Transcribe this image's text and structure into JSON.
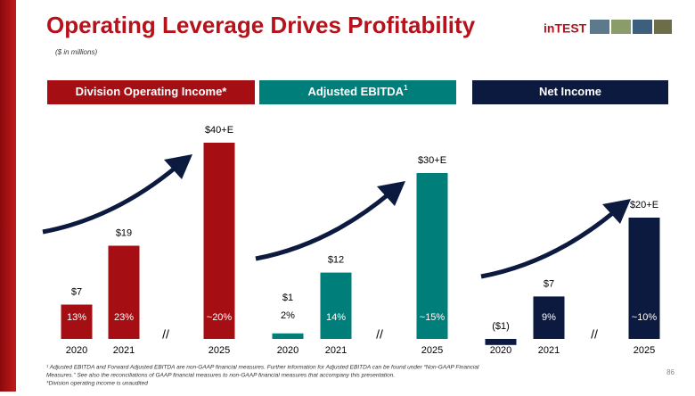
{
  "title": "Operating Leverage Drives Profitability",
  "subtitle": "($ in millions)",
  "logo": "inTEST",
  "page_number": "86",
  "footnotes": [
    "¹ Adjusted EBITDA and Forward Adjusted EBITDA are non-GAAP financial measures. Further information for Adjusted EBITDA can be found under “Non-GAAP Financial",
    "Measures.” See also the reconciliations of GAAP financial measures to non-GAAP financial measures that accompany this presentation.",
    "*Division operating income is unaudited"
  ],
  "chart_data": [
    {
      "type": "bar",
      "title": "Division Operating Income*",
      "color": "#a50f14",
      "categories": [
        "2020",
        "2021",
        "2025"
      ],
      "values": [
        7,
        19,
        40
      ],
      "value_labels": [
        "$7",
        "$19",
        "$40+E"
      ],
      "margin_labels": [
        "13%",
        "23%",
        "~20%"
      ]
    },
    {
      "type": "bar",
      "title": "Adjusted EBITDA",
      "title_sup": "1",
      "color": "#007f7a",
      "categories": [
        "2020",
        "2021",
        "2025"
      ],
      "values": [
        1,
        12,
        30
      ],
      "value_labels": [
        "$1",
        "$12",
        "$30+E"
      ],
      "margin_labels": [
        "2%",
        "14%",
        "~15%"
      ]
    },
    {
      "type": "bar",
      "title": "Net Income",
      "color": "#0c1a40",
      "categories": [
        "2020",
        "2021",
        "2025"
      ],
      "values": [
        -1,
        7,
        20
      ],
      "value_labels": [
        "($1)",
        "$7",
        "$20+E"
      ],
      "margin_labels": [
        null,
        "9%",
        "~10%"
      ]
    }
  ]
}
